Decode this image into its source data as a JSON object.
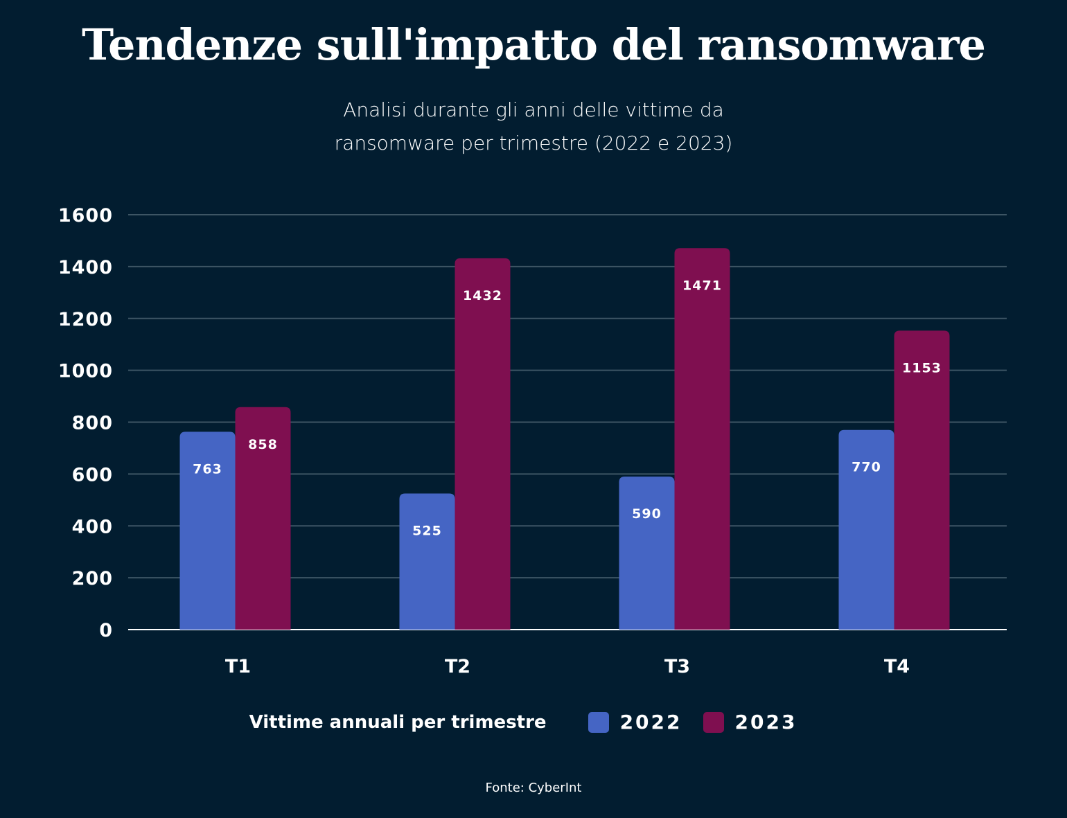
{
  "chart_data": {
    "type": "bar",
    "title": "Tendenze sull'impatto del ransomware",
    "subtitle": [
      "Analisi durante gli anni delle vittime da",
      "ransomware per trimestre (2022 e 2023)"
    ],
    "categories": [
      "T1",
      "T2",
      "T3",
      "T4"
    ],
    "series": [
      {
        "name": "2022",
        "color": "#4565c4",
        "values": [
          763,
          525,
          590,
          770
        ]
      },
      {
        "name": "2023",
        "color": "#7f0f50",
        "values": [
          858,
          1432,
          1471,
          1153
        ]
      }
    ],
    "yticks": [
      "0",
      "200",
      "400",
      "600",
      "800",
      "1000",
      "1200",
      "1400",
      "1600"
    ],
    "ylim": [
      0,
      1600
    ],
    "grid": true,
    "legend_title": "Vittime annuali per trimestre",
    "legend_position": "bottom",
    "source": "Fonte: CyberInt",
    "background": "#021d30",
    "grid_color": "#3d5564"
  }
}
